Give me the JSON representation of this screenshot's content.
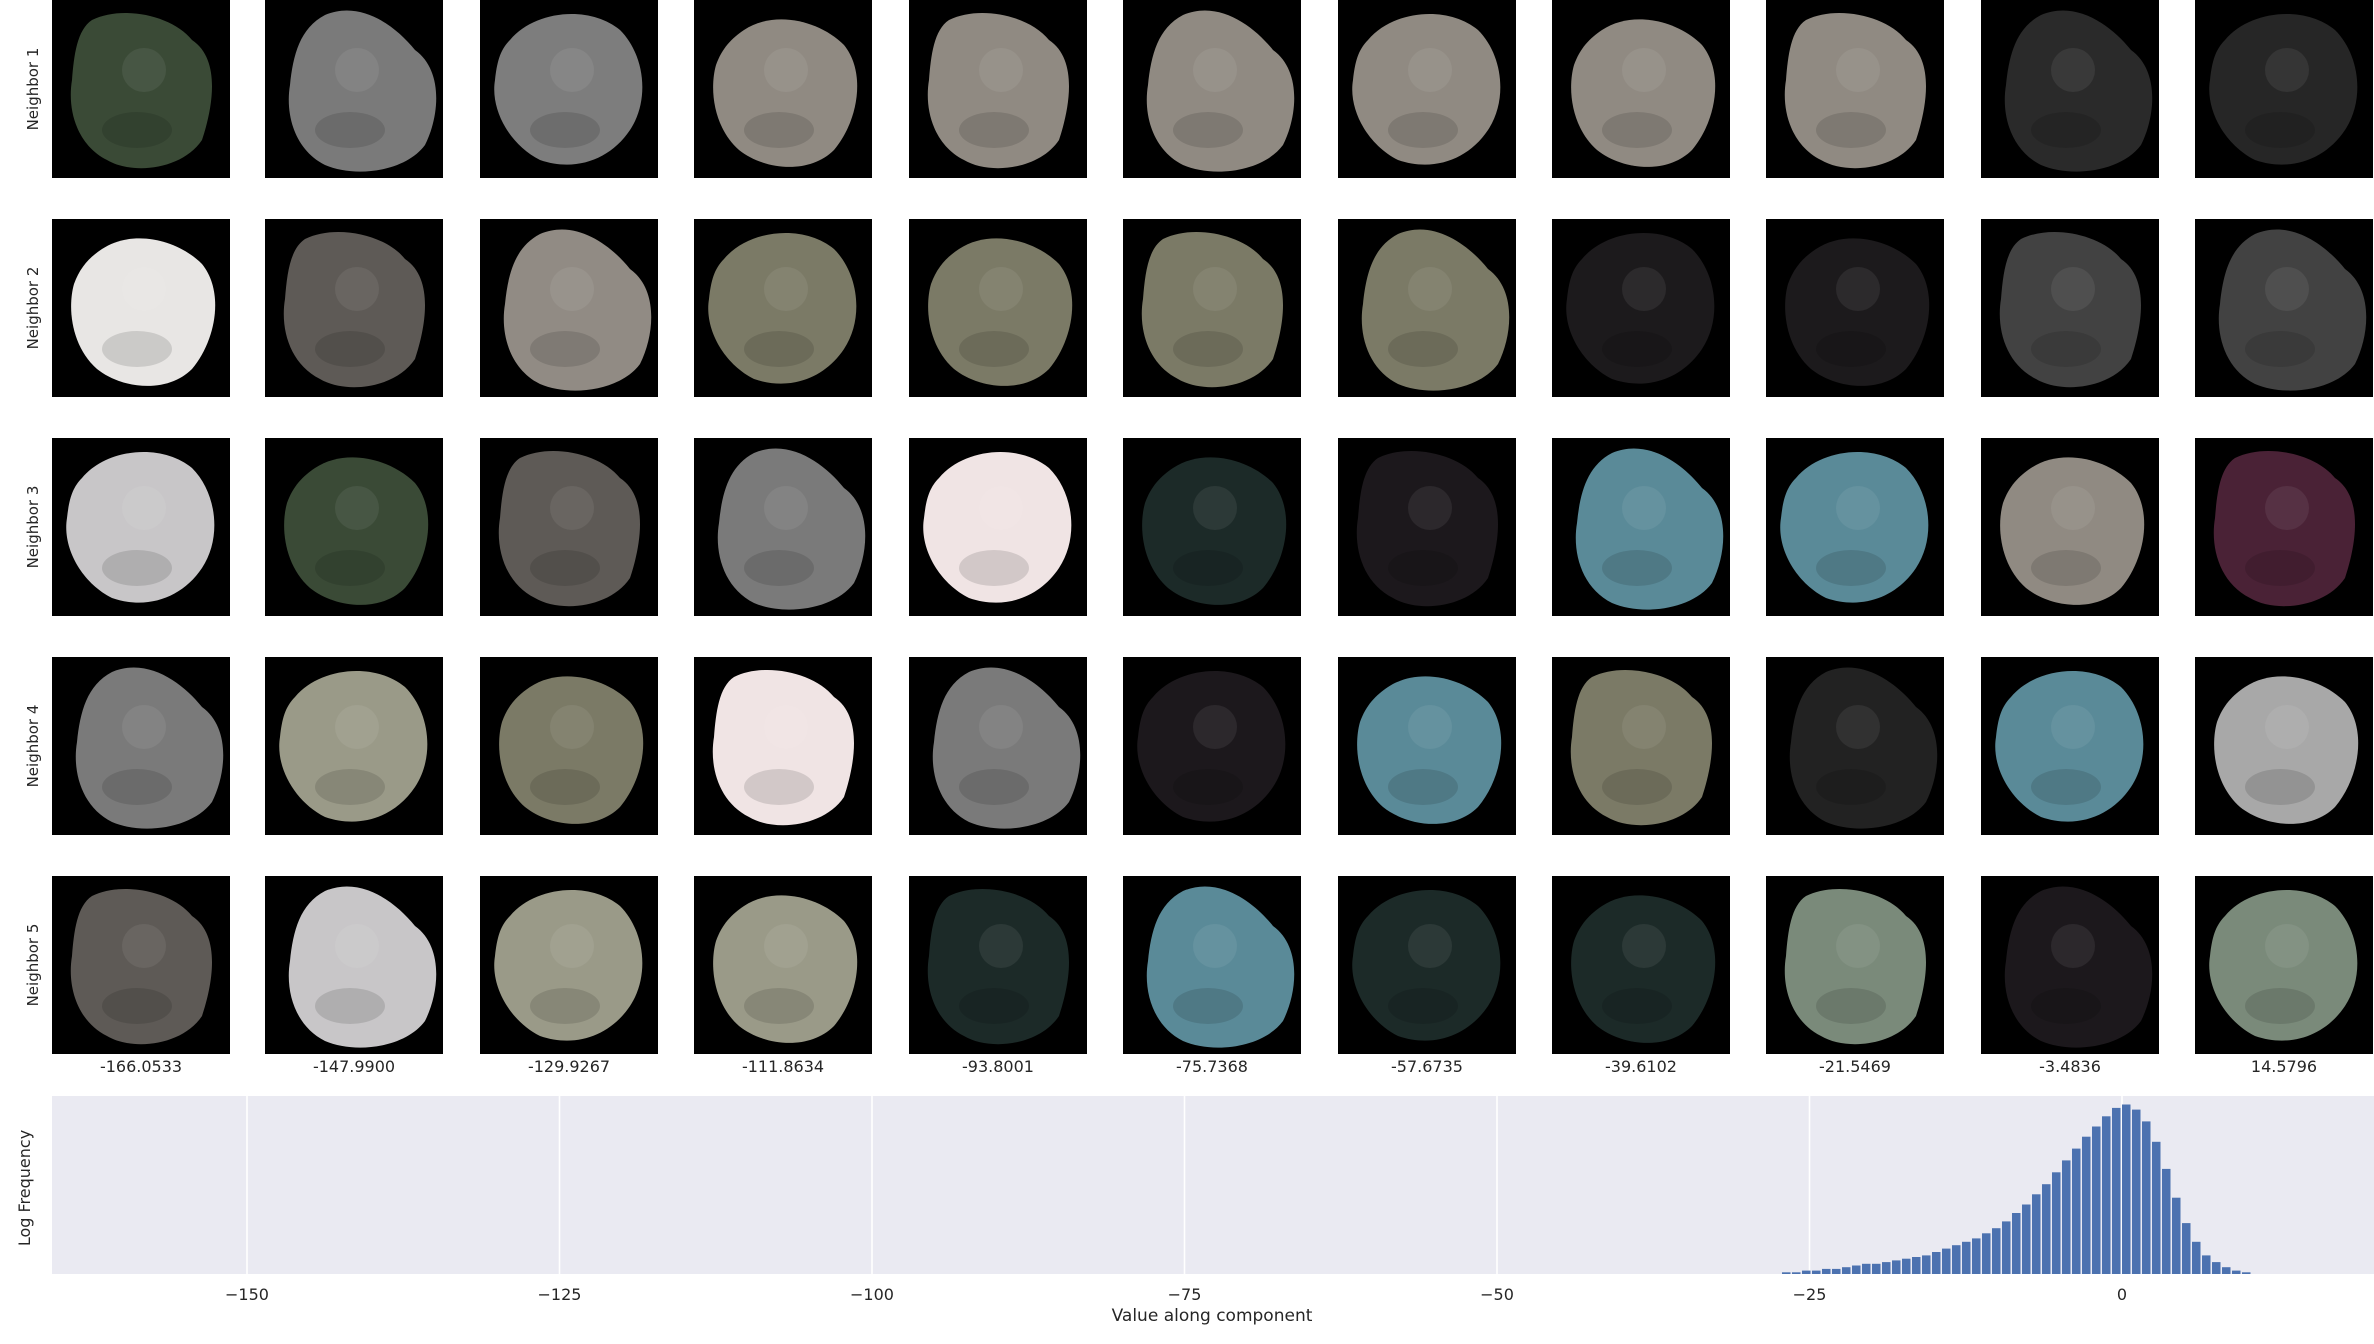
{
  "row_labels": [
    "Neighbor 1",
    "Neighbor 2",
    "Neighbor 3",
    "Neighbor 4",
    "Neighbor 5"
  ],
  "column_values": [
    "-166.0533",
    "-147.9900",
    "-129.9267",
    "-111.8634",
    "-93.8001",
    "-75.7368",
    "-57.6735",
    "-39.6102",
    "-21.5469",
    "-3.4836",
    "14.5796"
  ],
  "tile_colors": [
    [
      "#3a4a36",
      "#7a7a7a",
      "#7d7d7d",
      "#908a82",
      "#908a82",
      "#908a82",
      "#908a82",
      "#908a82",
      "#908a82",
      "#2a2a2a",
      "#262626"
    ],
    [
      "#e8e6e4",
      "#5e5a56",
      "#918b84",
      "#7b7a66",
      "#7b7a66",
      "#7b7a66",
      "#7b7a66",
      "#1c1a1c",
      "#1c1a1c",
      "#424242",
      "#424242"
    ],
    [
      "#c8c6c8",
      "#3a4a36",
      "#5e5a56",
      "#7a7a7a",
      "#f0e4e4",
      "#1c2a28",
      "#1c181c",
      "#5a8a98",
      "#5a8a98",
      "#908a82",
      "#4a2236"
    ],
    [
      "#7a7a7a",
      "#9a9a88",
      "#7b7a66",
      "#f0e4e4",
      "#7a7a7a",
      "#1c181c",
      "#5a8a98",
      "#7b7a66",
      "#222222",
      "#5a8a98",
      "#a8a8a8"
    ],
    [
      "#5e5a56",
      "#c8c6c8",
      "#9a9a88",
      "#9a9a88",
      "#1c2a28",
      "#5a8a98",
      "#1c2a28",
      "#1c2a28",
      "#7a8a7a",
      "#1c181c",
      "#7a8a7a"
    ]
  ],
  "chart_data": {
    "type": "bar",
    "xlabel": "Value along component",
    "ylabel": "Log Frequency",
    "xlim": [
      -167,
      18
    ],
    "xticks": [
      -150,
      -125,
      -100,
      -75,
      -50,
      -25,
      0
    ],
    "xtick_labels": [
      "−150",
      "−125",
      "−100",
      "−75",
      "−50",
      "−25",
      "0"
    ],
    "grid": true,
    "bar_color": "#4c72b0",
    "background": "#eaeaf2",
    "bin_width": 0.8,
    "x": [
      -26.8,
      -26.0,
      -25.2,
      -24.4,
      -23.6,
      -22.8,
      -22.0,
      -21.2,
      -20.4,
      -19.6,
      -18.8,
      -18.0,
      -17.2,
      -16.4,
      -15.6,
      -14.8,
      -14.0,
      -13.2,
      -12.4,
      -11.6,
      -10.8,
      -10.0,
      -9.2,
      -8.4,
      -7.6,
      -6.8,
      -6.0,
      -5.2,
      -4.4,
      -3.6,
      -2.8,
      -2.0,
      -1.2,
      -0.4,
      0.4,
      1.2,
      2.0,
      2.8,
      3.6,
      4.4,
      5.2,
      6.0,
      6.8,
      7.6,
      8.4,
      9.2,
      10.0
    ],
    "values": [
      0.01,
      0.01,
      0.02,
      0.02,
      0.03,
      0.03,
      0.04,
      0.05,
      0.06,
      0.06,
      0.07,
      0.08,
      0.09,
      0.1,
      0.11,
      0.13,
      0.15,
      0.17,
      0.19,
      0.21,
      0.24,
      0.27,
      0.31,
      0.36,
      0.41,
      0.47,
      0.53,
      0.6,
      0.67,
      0.74,
      0.81,
      0.87,
      0.93,
      0.98,
      1.0,
      0.97,
      0.9,
      0.78,
      0.62,
      0.45,
      0.3,
      0.19,
      0.11,
      0.07,
      0.04,
      0.02,
      0.01
    ],
    "ylim": [
      0,
      1.05
    ]
  }
}
